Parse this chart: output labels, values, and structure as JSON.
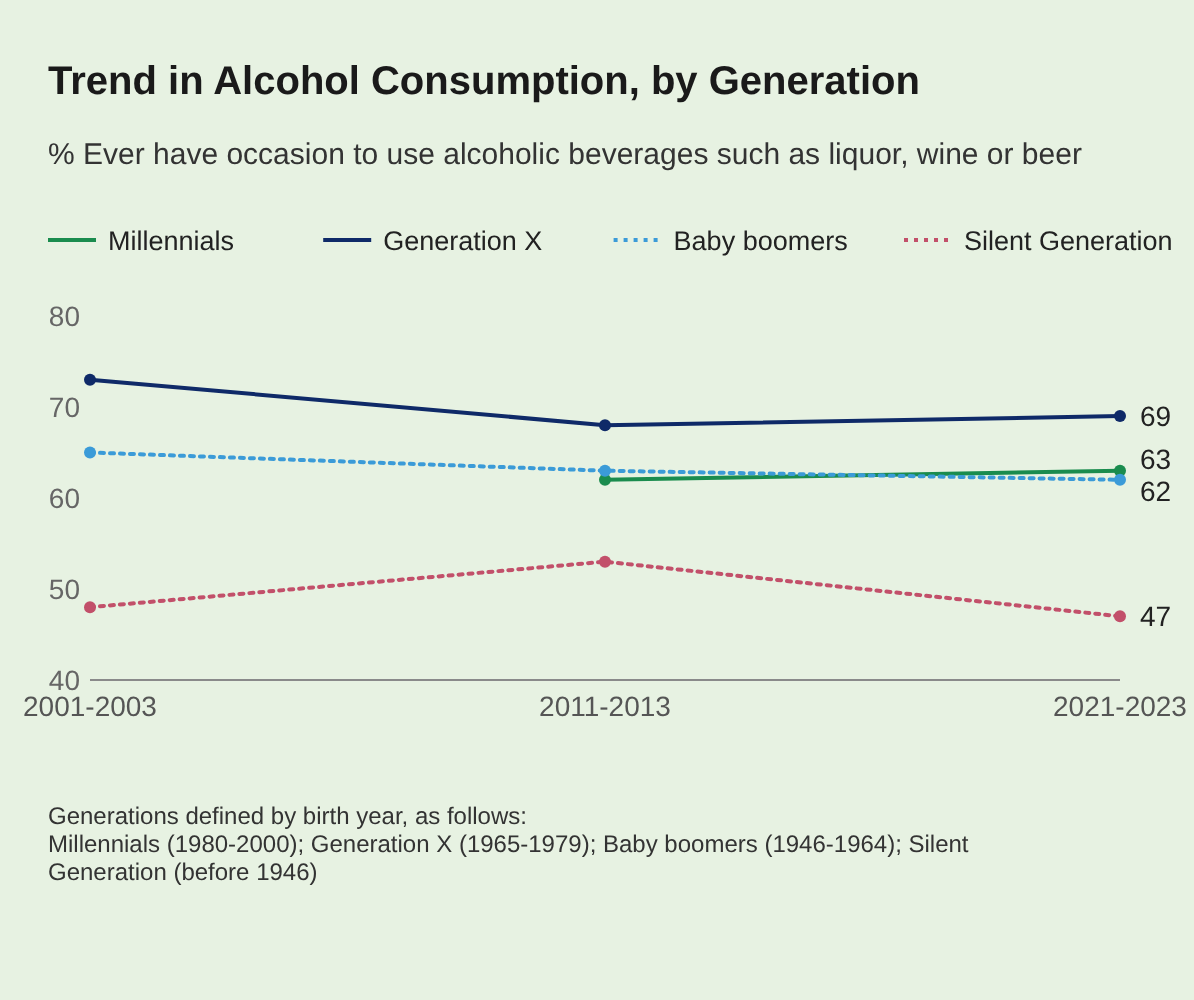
{
  "chart_data": {
    "type": "line",
    "title": "Trend in Alcohol Consumption, by Generation",
    "subtitle": "% Ever have occasion to use alcoholic beverages such as liquor, wine or beer",
    "categories": [
      "2001-2003",
      "2011-2013",
      "2021-2023"
    ],
    "series": [
      {
        "name": "Millennials",
        "color": "#1a8c4e",
        "line_style": "solid",
        "values": [
          null,
          62,
          63
        ],
        "value_labels": [
          null,
          null,
          "63"
        ]
      },
      {
        "name": "Generation X",
        "color": "#0f2a68",
        "line_style": "solid",
        "values": [
          73,
          68,
          69
        ],
        "value_labels": [
          null,
          null,
          "69"
        ]
      },
      {
        "name": "Baby boomers",
        "color": "#3b9bd8",
        "line_style": "dotted",
        "values": [
          65,
          63,
          62
        ],
        "value_labels": [
          null,
          null,
          "62"
        ]
      },
      {
        "name": "Silent Generation",
        "color": "#c2506a",
        "line_style": "dotted",
        "values": [
          48,
          53,
          47
        ],
        "value_labels": [
          null,
          null,
          "47"
        ]
      }
    ],
    "ylim": [
      40,
      80
    ],
    "yticks": [
      40,
      50,
      60,
      70,
      80
    ],
    "grid": false,
    "legend": "top left",
    "marker": "circle",
    "annotations": [
      "Generations defined by birth year, as follows:",
      "Millennials (1980-2000); Generation X (1965-1979); Baby boomers (1946-1964); Silent Generation (before 1946)"
    ]
  }
}
